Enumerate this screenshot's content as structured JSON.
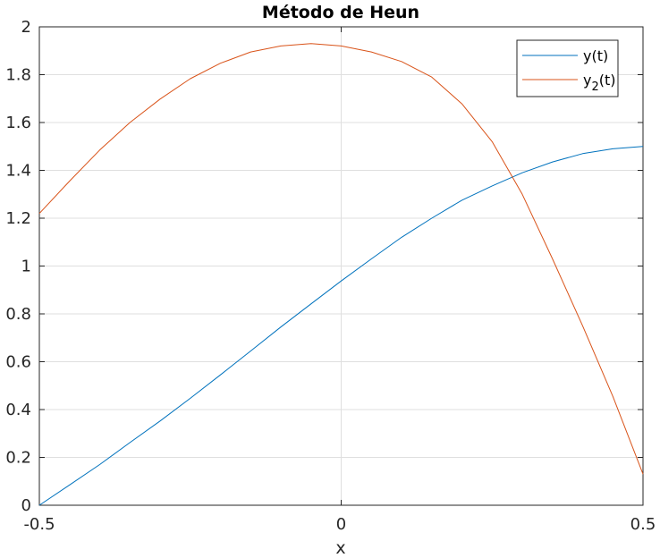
{
  "chart_data": {
    "type": "line",
    "title": "Método de Heun",
    "xlabel": "x",
    "ylabel": "",
    "xlim": [
      -0.5,
      0.5
    ],
    "ylim": [
      0,
      2
    ],
    "xticks": [
      -0.5,
      0,
      0.5
    ],
    "xtick_labels": [
      "-0.5",
      "0",
      "0.5"
    ],
    "yticks": [
      0,
      0.2,
      0.4,
      0.6,
      0.8,
      1,
      1.2,
      1.4,
      1.6,
      1.8,
      2
    ],
    "ytick_labels": [
      "0",
      "0.2",
      "0.4",
      "0.6",
      "0.8",
      "1",
      "1.2",
      "1.4",
      "1.6",
      "1.8",
      "2"
    ],
    "grid": true,
    "legend_position": "top-right",
    "series": [
      {
        "name": "y(t)",
        "legend_main": "y(t)",
        "color": "#0072BD",
        "x": [
          -0.5,
          -0.45,
          -0.4,
          -0.35,
          -0.3,
          -0.25,
          -0.2,
          -0.15,
          -0.1,
          -0.05,
          0,
          0.05,
          0.1,
          0.15,
          0.2,
          0.25,
          0.3,
          0.35,
          0.4,
          0.45,
          0.5
        ],
        "y": [
          0,
          0.085,
          0.17,
          0.262,
          0.352,
          0.447,
          0.545,
          0.645,
          0.745,
          0.842,
          0.9375,
          1.03,
          1.12,
          1.2,
          1.275,
          1.335,
          1.39,
          1.435,
          1.47,
          1.49,
          1.5
        ]
      },
      {
        "name": "y2(t)",
        "legend_main": "y",
        "legend_sub": "2",
        "legend_tail": "(t)",
        "color": "#D95319",
        "x": [
          -0.5,
          -0.45,
          -0.4,
          -0.35,
          -0.3,
          -0.25,
          -0.2,
          -0.15,
          -0.1,
          -0.05,
          0,
          0.05,
          0.1,
          0.15,
          0.2,
          0.25,
          0.3,
          0.35,
          0.4,
          0.45,
          0.5
        ],
        "y": [
          1.22,
          1.355,
          1.485,
          1.6,
          1.698,
          1.783,
          1.848,
          1.895,
          1.92,
          1.93,
          1.92,
          1.895,
          1.855,
          1.79,
          1.678,
          1.52,
          1.3,
          1.03,
          0.75,
          0.455,
          0.13
        ]
      }
    ]
  }
}
